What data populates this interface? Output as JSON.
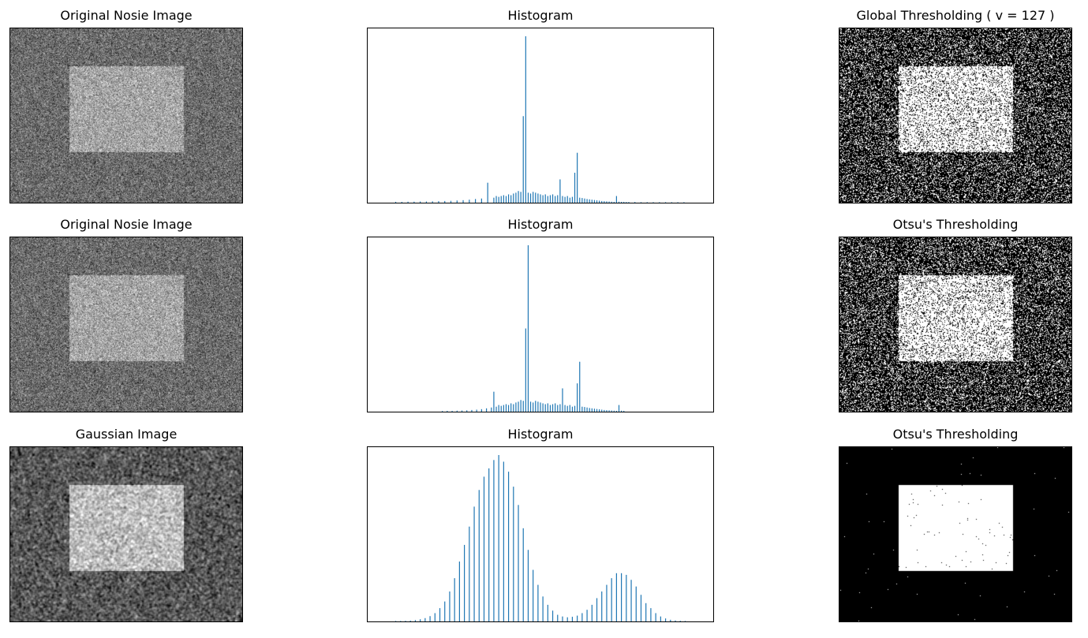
{
  "figure": {
    "rows": [
      {
        "image": {
          "title": "Original Nosie Image",
          "kind": "noisy"
        },
        "hist": {
          "title": "Histogram"
        },
        "result": {
          "title": "Global Thresholding ( v = 127 )",
          "kind": "binary-noisy"
        }
      },
      {
        "image": {
          "title": "Original Nosie Image",
          "kind": "noisy"
        },
        "hist": {
          "title": "Histogram"
        },
        "result": {
          "title": "Otsu's Thresholding",
          "kind": "binary-noisy"
        }
      },
      {
        "image": {
          "title": "Gaussian Image",
          "kind": "blurred"
        },
        "hist": {
          "title": "Histogram"
        },
        "result": {
          "title": "Otsu's Thresholding",
          "kind": "binary-clean"
        }
      }
    ]
  },
  "chart_data": [
    {
      "type": "bar",
      "title": "Histogram",
      "bar_color": "#1f77b4",
      "xlim": [
        0,
        256
      ],
      "ylim": [
        0,
        1
      ],
      "x": [
        10,
        15,
        20,
        25,
        30,
        35,
        40,
        45,
        50,
        55,
        60,
        65,
        70,
        75,
        80,
        85,
        90,
        92,
        94,
        96,
        98,
        100,
        102,
        104,
        106,
        108,
        110,
        112,
        114,
        116,
        118,
        120,
        122,
        124,
        126,
        128,
        130,
        132,
        134,
        136,
        138,
        140,
        142,
        144,
        146,
        148,
        150,
        152,
        154,
        156,
        158,
        160,
        162,
        164,
        166,
        168,
        170,
        172,
        174,
        176,
        178,
        180,
        182,
        184,
        186,
        188,
        190,
        192,
        194,
        196,
        198,
        200,
        205,
        210,
        215,
        220,
        225,
        230,
        235,
        240,
        245
      ],
      "values": [
        0.005,
        0.005,
        0.006,
        0.006,
        0.007,
        0.007,
        0.008,
        0.009,
        0.01,
        0.011,
        0.013,
        0.015,
        0.018,
        0.022,
        0.025,
        0.12,
        0.03,
        0.04,
        0.035,
        0.04,
        0.045,
        0.04,
        0.05,
        0.045,
        0.055,
        0.06,
        0.07,
        0.065,
        0.52,
        1.0,
        0.06,
        0.055,
        0.065,
        0.06,
        0.055,
        0.05,
        0.045,
        0.05,
        0.04,
        0.045,
        0.05,
        0.04,
        0.045,
        0.14,
        0.04,
        0.035,
        0.04,
        0.03,
        0.035,
        0.18,
        0.3,
        0.03,
        0.028,
        0.025,
        0.022,
        0.02,
        0.018,
        0.016,
        0.014,
        0.012,
        0.01,
        0.009,
        0.008,
        0.007,
        0.006,
        0.005,
        0.04,
        0.006,
        0.005,
        0.005,
        0.004,
        0.004,
        0.004,
        0.003,
        0.003,
        0.003,
        0.003,
        0.003,
        0.002,
        0.002,
        0.002
      ]
    },
    {
      "type": "bar",
      "title": "Histogram",
      "bar_color": "#1f77b4",
      "xlim": [
        0,
        256
      ],
      "ylim": [
        0,
        1
      ],
      "x": [
        48,
        52,
        56,
        60,
        64,
        68,
        72,
        76,
        80,
        84,
        88,
        90,
        92,
        94,
        96,
        98,
        100,
        102,
        104,
        106,
        108,
        110,
        112,
        114,
        116,
        118,
        120,
        122,
        124,
        126,
        128,
        130,
        132,
        134,
        136,
        138,
        140,
        142,
        144,
        146,
        148,
        150,
        152,
        154,
        156,
        158,
        160,
        162,
        164,
        166,
        168,
        170,
        172,
        174,
        176,
        178,
        180,
        182,
        184,
        186,
        188,
        190,
        192,
        194,
        196
      ],
      "values": [
        0.004,
        0.005,
        0.005,
        0.006,
        0.007,
        0.008,
        0.01,
        0.012,
        0.015,
        0.02,
        0.025,
        0.12,
        0.03,
        0.04,
        0.035,
        0.04,
        0.045,
        0.04,
        0.05,
        0.045,
        0.055,
        0.06,
        0.07,
        0.065,
        0.5,
        1.0,
        0.06,
        0.055,
        0.065,
        0.06,
        0.055,
        0.05,
        0.045,
        0.05,
        0.04,
        0.045,
        0.05,
        0.04,
        0.045,
        0.14,
        0.04,
        0.035,
        0.04,
        0.03,
        0.035,
        0.17,
        0.3,
        0.03,
        0.028,
        0.025,
        0.022,
        0.02,
        0.018,
        0.016,
        0.014,
        0.012,
        0.01,
        0.009,
        0.008,
        0.007,
        0.006,
        0.005,
        0.04,
        0.006,
        0.005
      ]
    },
    {
      "type": "bar",
      "title": "Histogram",
      "bar_color": "#1f77b4",
      "xlim": [
        0,
        256
      ],
      "ylim": [
        0,
        1
      ],
      "x": [
        10,
        14,
        18,
        22,
        26,
        30,
        34,
        38,
        42,
        46,
        50,
        54,
        58,
        62,
        66,
        70,
        74,
        78,
        82,
        86,
        90,
        94,
        98,
        102,
        106,
        110,
        114,
        118,
        122,
        126,
        130,
        134,
        138,
        142,
        146,
        150,
        154,
        158,
        162,
        166,
        170,
        174,
        178,
        182,
        186,
        190,
        194,
        198,
        202,
        206,
        210,
        214,
        218,
        222,
        226,
        230,
        234,
        238,
        242,
        246
      ],
      "values": [
        0.002,
        0.003,
        0.004,
        0.005,
        0.008,
        0.013,
        0.02,
        0.032,
        0.05,
        0.08,
        0.12,
        0.18,
        0.26,
        0.36,
        0.46,
        0.57,
        0.69,
        0.79,
        0.87,
        0.92,
        0.97,
        1.0,
        0.96,
        0.9,
        0.81,
        0.7,
        0.56,
        0.43,
        0.31,
        0.22,
        0.15,
        0.1,
        0.065,
        0.04,
        0.03,
        0.025,
        0.028,
        0.035,
        0.05,
        0.07,
        0.1,
        0.14,
        0.18,
        0.22,
        0.26,
        0.29,
        0.29,
        0.28,
        0.25,
        0.21,
        0.16,
        0.11,
        0.08,
        0.05,
        0.03,
        0.018,
        0.01,
        0.006,
        0.004,
        0.002
      ]
    }
  ]
}
